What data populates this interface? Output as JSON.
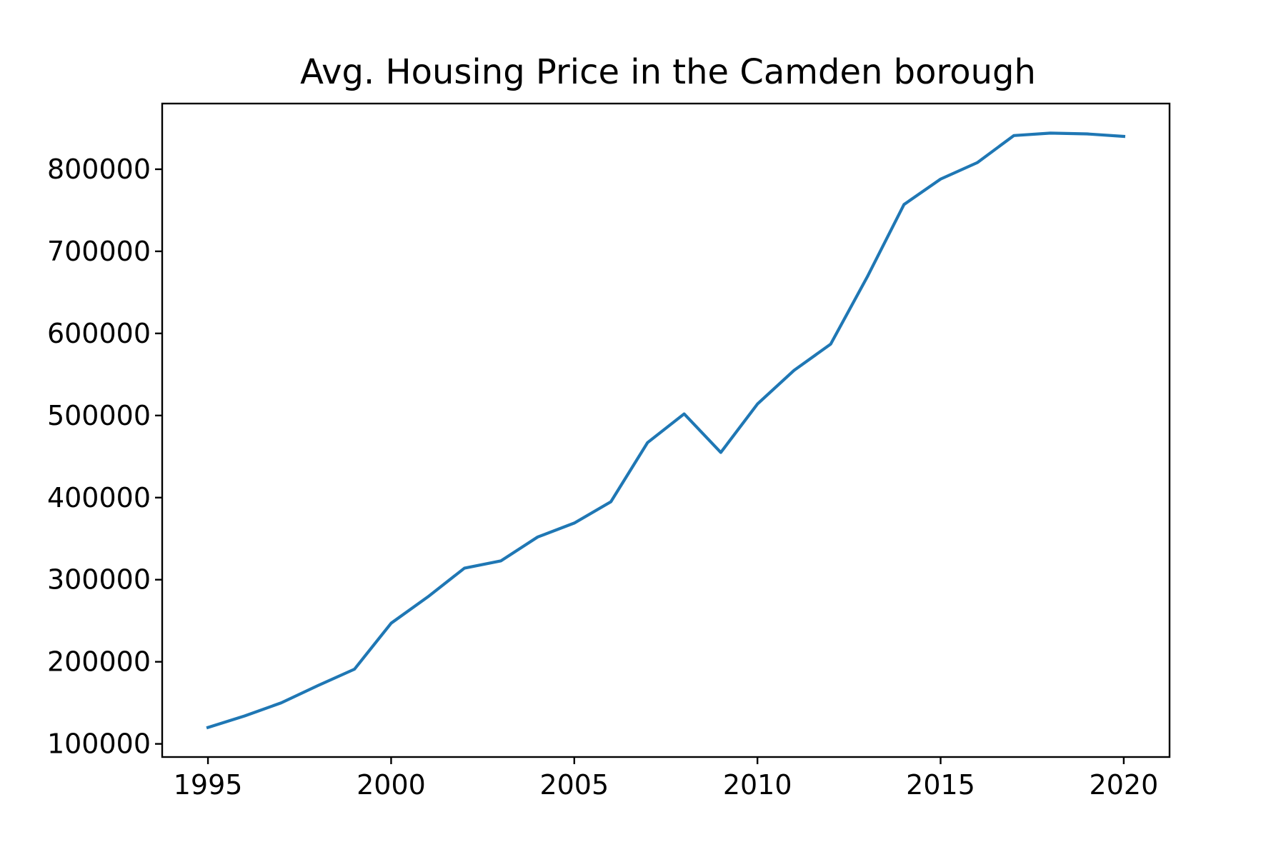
{
  "chart_data": {
    "type": "line",
    "title": "Avg. Housing Price in the Camden borough",
    "xlabel": "",
    "ylabel": "",
    "x": [
      1995,
      1996,
      1997,
      1998,
      1999,
      2000,
      2001,
      2002,
      2003,
      2004,
      2005,
      2006,
      2007,
      2008,
      2009,
      2010,
      2011,
      2012,
      2013,
      2014,
      2015,
      2016,
      2017,
      2018,
      2019,
      2020
    ],
    "series": [
      {
        "name": "",
        "color": "#1f77b4",
        "values": [
          120000,
          134000,
          150000,
          171000,
          191000,
          247000,
          279000,
          314000,
          323000,
          352000,
          369000,
          395000,
          467000,
          502000,
          455000,
          514000,
          555000,
          587000,
          669000,
          757000,
          788000,
          808000,
          841000,
          844000,
          843000,
          840000
        ]
      }
    ],
    "xlim": [
      1993.75,
      2021.25
    ],
    "ylim": [
      84000,
      880000
    ],
    "x_ticks": [
      1995,
      2000,
      2005,
      2010,
      2015,
      2020
    ],
    "x_tick_labels": [
      "1995",
      "2000",
      "2005",
      "2010",
      "2015",
      "2020"
    ],
    "y_ticks": [
      100000,
      200000,
      300000,
      400000,
      500000,
      600000,
      700000,
      800000
    ],
    "y_tick_labels": [
      "100000",
      "200000",
      "300000",
      "400000",
      "500000",
      "600000",
      "700000",
      "800000"
    ],
    "grid": false,
    "legend": "none"
  }
}
